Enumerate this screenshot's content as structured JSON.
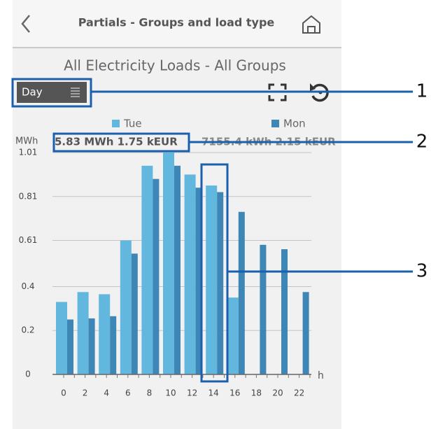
{
  "header": {
    "title": "Partials - Groups and load type"
  },
  "subtitle": "All Electricity Loads - All Groups",
  "period": "Day",
  "callouts": [
    "1",
    "2",
    "3"
  ],
  "chart_data": {
    "type": "bar",
    "y_label": "MWh",
    "x_label": "h",
    "totals": [
      "5.83 MWh 1.75 kEUR",
      "7155.4 kWh 2.15 kEUR"
    ],
    "categories": [
      "0",
      "2",
      "4",
      "6",
      "8",
      "10",
      "12",
      "14",
      "16",
      "18",
      "20",
      "22"
    ],
    "series": [
      {
        "name": "Tue",
        "color": "#62b7de",
        "values": [
          0.33,
          0.375,
          0.365,
          0.61,
          0.95,
          1.01,
          0.91,
          0.86,
          0.35,
          null,
          null,
          null
        ]
      },
      {
        "name": "Mon",
        "color": "#3d86b6",
        "values": [
          0.25,
          0.255,
          0.265,
          0.55,
          0.89,
          0.95,
          0.85,
          0.83,
          0.74,
          0.59,
          0.57,
          0.375
        ]
      }
    ],
    "ylim": [
      0,
      1.01
    ],
    "yticks": [
      0,
      0.2,
      0.4,
      0.61,
      0.81,
      1.01
    ],
    "grid": true
  }
}
